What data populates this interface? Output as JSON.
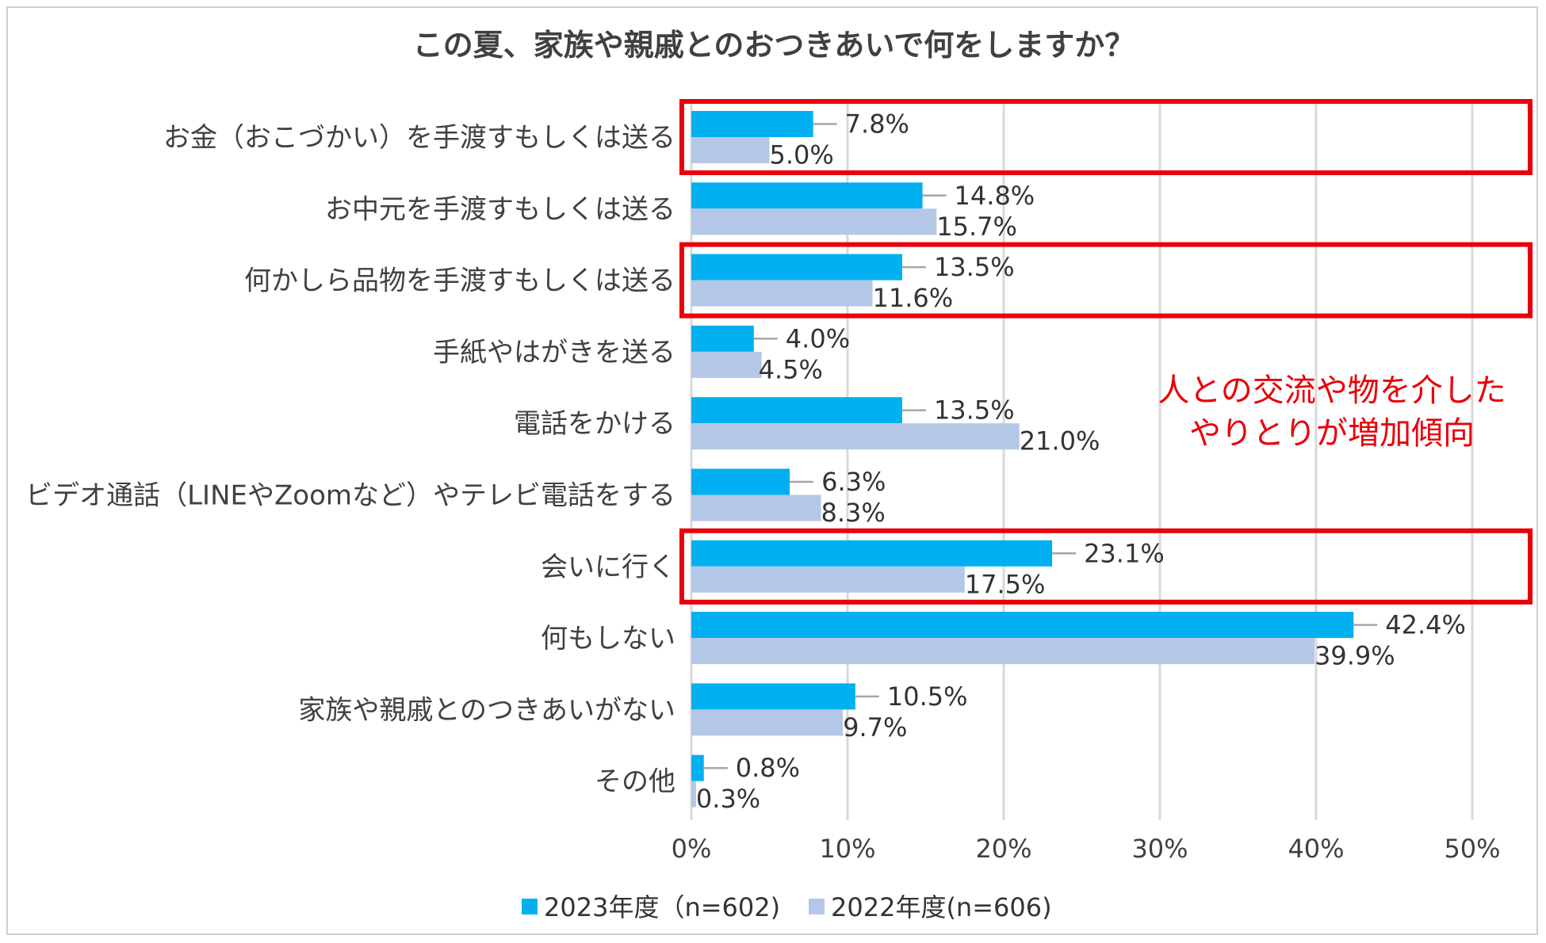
{
  "chart_data": {
    "type": "bar",
    "orientation": "horizontal",
    "title": "この夏、家族や親戚とのおつきあいで何をしますか？",
    "categories": [
      "お金（おこづかい）を手渡すもしくは送る",
      "お中元を手渡すもしくは送る",
      "何かしら品物を手渡すもしくは送る",
      "手紙やはがきを送る",
      "電話をかける",
      "ビデオ通話（LINEやZoomなど）やテレビ電話をする",
      "会いに行く",
      "何もしない",
      "家族や親戚とのつきあいがない",
      "その他"
    ],
    "series": [
      {
        "name": "2023年度（n=602)",
        "color": "#00b0f0",
        "values": [
          7.8,
          14.8,
          13.5,
          4.0,
          13.5,
          6.3,
          23.1,
          42.4,
          10.5,
          0.8
        ],
        "labels": [
          "7.8%",
          "14.8%",
          "13.5%",
          "4.0%",
          "13.5%",
          "6.3%",
          "23.1%",
          "42.4%",
          "10.5%",
          "0.8%"
        ]
      },
      {
        "name": "2022年度(n=606)",
        "color": "#b4c7e7",
        "values": [
          5.0,
          15.7,
          11.6,
          4.5,
          21.0,
          8.3,
          17.5,
          39.9,
          9.7,
          0.3
        ],
        "labels": [
          "5.0%",
          "15.7%",
          "11.6%",
          "4.5%",
          "21.0%",
          "8.3%",
          "17.5%",
          "39.9%",
          "9.7%",
          "0.3%"
        ]
      }
    ],
    "xlim": [
      0,
      50
    ],
    "xticks": [
      0,
      10,
      20,
      30,
      40,
      50
    ],
    "xtick_labels": [
      "0%",
      "10%",
      "20%",
      "30%",
      "40%",
      "50%"
    ],
    "grid": true,
    "legend_position": "bottom-center",
    "highlighted_categories": [
      0,
      2,
      6
    ],
    "highlight_color": "#e8000b",
    "annotation": {
      "lines": [
        "人との交流や物を介した",
        "やりとりが増加傾向"
      ],
      "color": "#e8000b"
    }
  }
}
